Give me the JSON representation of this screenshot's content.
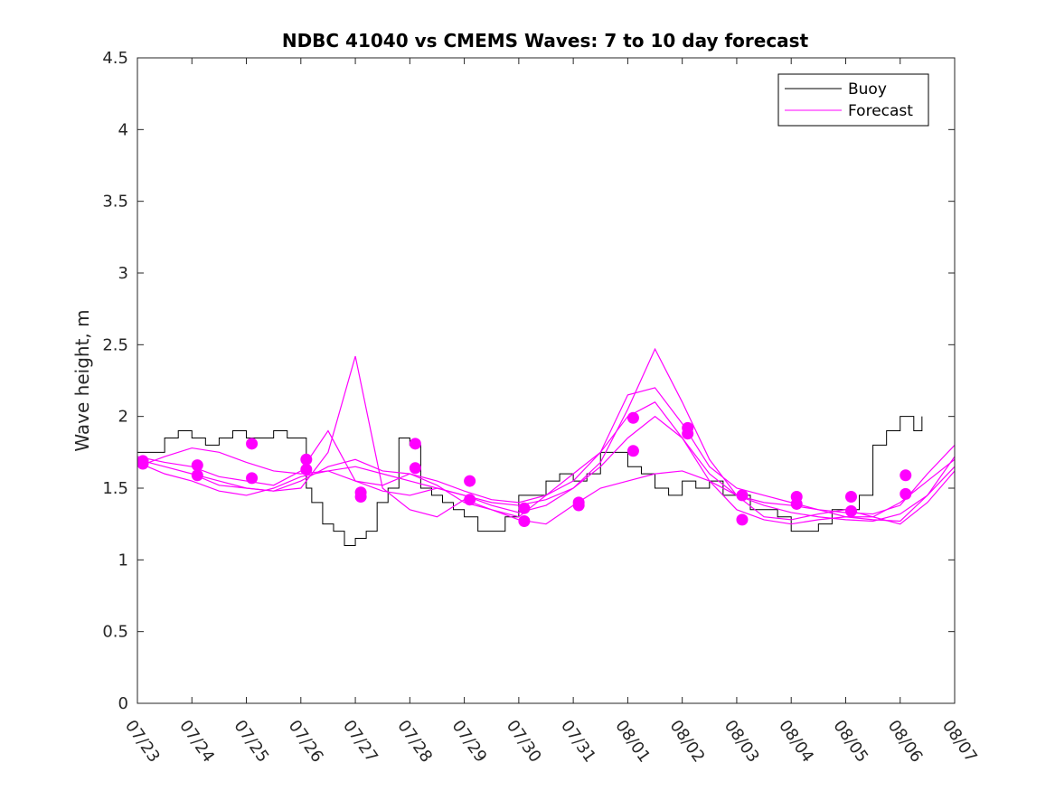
{
  "chart_data": {
    "type": "line",
    "title": "NDBC 41040 vs CMEMS Waves: 7 to 10 day forecast",
    "xlabel": "",
    "ylabel": "Wave height, m",
    "xlim": [
      "07/23",
      "08/07"
    ],
    "ylim": [
      0,
      4.5
    ],
    "x_tick_labels": [
      "07/23",
      "07/24",
      "07/25",
      "07/26",
      "07/27",
      "07/28",
      "07/29",
      "07/30",
      "07/31",
      "08/01",
      "08/02",
      "08/03",
      "08/04",
      "08/05",
      "08/06",
      "08/07"
    ],
    "y_tick_labels": [
      "0",
      "0.5",
      "1",
      "1.5",
      "2",
      "2.5",
      "3",
      "3.5",
      "4",
      "4.5"
    ],
    "y_ticks": [
      0,
      0.5,
      1,
      1.5,
      2,
      2.5,
      3,
      3.5,
      4,
      4.5
    ],
    "grid": false,
    "legend_position": "top-right",
    "colors": {
      "buoy": "#000000",
      "forecast": "#ff00ff"
    },
    "series": [
      {
        "name": "Buoy",
        "x_days": [
          0,
          0.25,
          0.5,
          0.75,
          1,
          1.25,
          1.5,
          1.75,
          2,
          2.25,
          2.5,
          2.75,
          3,
          3.1,
          3.2,
          3.4,
          3.6,
          3.8,
          4,
          4.2,
          4.4,
          4.6,
          4.8,
          5,
          5.2,
          5.4,
          5.6,
          5.8,
          6,
          6.25,
          6.5,
          6.75,
          7,
          7.25,
          7.5,
          7.75,
          8,
          8.25,
          8.5,
          8.75,
          9,
          9.25,
          9.5,
          9.75,
          10,
          10.25,
          10.5,
          10.75,
          11,
          11.25,
          11.5,
          11.75,
          12,
          12.25,
          12.5,
          12.75,
          13,
          13.25,
          13.5,
          13.75,
          14,
          14.25,
          14.4
        ],
        "values": [
          1.75,
          1.75,
          1.85,
          1.9,
          1.85,
          1.8,
          1.85,
          1.9,
          1.85,
          1.85,
          1.9,
          1.85,
          1.85,
          1.5,
          1.4,
          1.25,
          1.2,
          1.1,
          1.15,
          1.2,
          1.4,
          1.5,
          1.85,
          1.8,
          1.5,
          1.45,
          1.4,
          1.35,
          1.3,
          1.2,
          1.2,
          1.3,
          1.45,
          1.45,
          1.55,
          1.6,
          1.55,
          1.6,
          1.75,
          1.75,
          1.65,
          1.6,
          1.5,
          1.45,
          1.55,
          1.5,
          1.55,
          1.45,
          1.45,
          1.35,
          1.35,
          1.3,
          1.2,
          1.2,
          1.25,
          1.35,
          1.35,
          1.45,
          1.8,
          1.9,
          2.0,
          1.9,
          2.0
        ]
      },
      {
        "name": "Forecast",
        "lines": [
          {
            "x_days": [
              0,
              0.5,
              1,
              1.5,
              2,
              2.5,
              3,
              3.5,
              4,
              4.5,
              5,
              5.5,
              6,
              6.5,
              7,
              7.5,
              8,
              8.5,
              9,
              9.5,
              10,
              10.5,
              11,
              11.5,
              12,
              12.5,
              13,
              13.5,
              14,
              14.5,
              15
            ],
            "values": [
              1.65,
              1.72,
              1.78,
              1.75,
              1.68,
              1.62,
              1.6,
              1.62,
              1.55,
              1.48,
              1.45,
              1.5,
              1.45,
              1.38,
              1.33,
              1.38,
              1.5,
              1.65,
              1.85,
              2.0,
              1.85,
              1.6,
              1.45,
              1.4,
              1.38,
              1.35,
              1.3,
              1.3,
              1.4,
              1.55,
              1.7
            ]
          },
          {
            "x_days": [
              0,
              0.5,
              1,
              1.5,
              2,
              2.5,
              3,
              3.5,
              4,
              4.5,
              5,
              5.5,
              6,
              6.5,
              7,
              7.5,
              8,
              8.5,
              9,
              9.5,
              10,
              10.5,
              11,
              11.5,
              12,
              12.5,
              13,
              13.5,
              14,
              14.5,
              15
            ],
            "values": [
              1.7,
              1.65,
              1.6,
              1.55,
              1.5,
              1.48,
              1.55,
              1.65,
              1.7,
              1.62,
              1.6,
              1.55,
              1.48,
              1.42,
              1.4,
              1.45,
              1.55,
              1.75,
              2.15,
              2.2,
              1.95,
              1.65,
              1.5,
              1.45,
              1.4,
              1.35,
              1.33,
              1.32,
              1.38,
              1.6,
              1.8
            ]
          },
          {
            "x_days": [
              0,
              0.5,
              1,
              1.5,
              2,
              2.5,
              3,
              3.5,
              4,
              4.5,
              5,
              5.5,
              6,
              6.5,
              7,
              7.5,
              8,
              8.5,
              9,
              9.5,
              10,
              10.5,
              11,
              11.5,
              12,
              12.5,
              13,
              13.5,
              14,
              14.5,
              15
            ],
            "values": [
              1.68,
              1.6,
              1.55,
              1.48,
              1.45,
              1.5,
              1.58,
              1.62,
              1.65,
              1.6,
              1.55,
              1.5,
              1.45,
              1.4,
              1.38,
              1.42,
              1.5,
              1.68,
              2.05,
              2.47,
              2.1,
              1.7,
              1.45,
              1.3,
              1.28,
              1.32,
              1.35,
              1.3,
              1.25,
              1.4,
              1.62
            ]
          },
          {
            "x_days": [
              0,
              0.5,
              1,
              1.5,
              2,
              2.5,
              3,
              3.5,
              4,
              4.5,
              5,
              5.5,
              6,
              6.5,
              7,
              7.5,
              8,
              8.5,
              9,
              9.5,
              10,
              10.5,
              11,
              11.5,
              12,
              12.5,
              13,
              13.5,
              14,
              14.5,
              15
            ],
            "values": [
              1.72,
              1.68,
              1.65,
              1.58,
              1.55,
              1.52,
              1.62,
              1.9,
              1.55,
              1.52,
              1.6,
              1.52,
              1.4,
              1.35,
              1.3,
              1.45,
              1.6,
              1.75,
              2.0,
              2.1,
              1.85,
              1.55,
              1.35,
              1.28,
              1.25,
              1.28,
              1.3,
              1.28,
              1.27,
              1.45,
              1.65
            ]
          },
          {
            "x_days": [
              1,
              1.5,
              2,
              2.5,
              3,
              3.5,
              4,
              4.5,
              5,
              5.5,
              6,
              6.5,
              7,
              7.5,
              8,
              8.5,
              9,
              9.5,
              10,
              10.5,
              11,
              11.5,
              12,
              12.5,
              13,
              13.5,
              14,
              14.5,
              15
            ],
            "values": [
              1.6,
              1.52,
              1.5,
              1.48,
              1.5,
              1.75,
              2.42,
              1.5,
              1.35,
              1.3,
              1.42,
              1.35,
              1.28,
              1.25,
              1.38,
              1.5,
              1.55,
              1.6,
              1.62,
              1.55,
              1.45,
              1.38,
              1.33,
              1.3,
              1.28,
              1.27,
              1.32,
              1.45,
              1.72
            ]
          }
        ],
        "dot_markers": [
          {
            "x_day": 0.1,
            "value": 1.69
          },
          {
            "x_day": 0.1,
            "value": 1.67
          },
          {
            "x_day": 1.1,
            "value": 1.66
          },
          {
            "x_day": 1.1,
            "value": 1.59
          },
          {
            "x_day": 2.1,
            "value": 1.81
          },
          {
            "x_day": 2.1,
            "value": 1.57
          },
          {
            "x_day": 3.1,
            "value": 1.7
          },
          {
            "x_day": 3.1,
            "value": 1.63
          },
          {
            "x_day": 4.1,
            "value": 1.47
          },
          {
            "x_day": 4.1,
            "value": 1.44
          },
          {
            "x_day": 5.1,
            "value": 1.81
          },
          {
            "x_day": 5.1,
            "value": 1.64
          },
          {
            "x_day": 6.1,
            "value": 1.55
          },
          {
            "x_day": 6.1,
            "value": 1.42
          },
          {
            "x_day": 7.1,
            "value": 1.36
          },
          {
            "x_day": 7.1,
            "value": 1.27
          },
          {
            "x_day": 8.1,
            "value": 1.4
          },
          {
            "x_day": 8.1,
            "value": 1.38
          },
          {
            "x_day": 9.1,
            "value": 1.99
          },
          {
            "x_day": 9.1,
            "value": 1.76
          },
          {
            "x_day": 10.1,
            "value": 1.92
          },
          {
            "x_day": 10.1,
            "value": 1.88
          },
          {
            "x_day": 11.1,
            "value": 1.45
          },
          {
            "x_day": 11.1,
            "value": 1.28
          },
          {
            "x_day": 12.1,
            "value": 1.44
          },
          {
            "x_day": 12.1,
            "value": 1.39
          },
          {
            "x_day": 13.1,
            "value": 1.44
          },
          {
            "x_day": 13.1,
            "value": 1.34
          },
          {
            "x_day": 14.1,
            "value": 1.59
          },
          {
            "x_day": 14.1,
            "value": 1.46
          }
        ]
      }
    ]
  }
}
